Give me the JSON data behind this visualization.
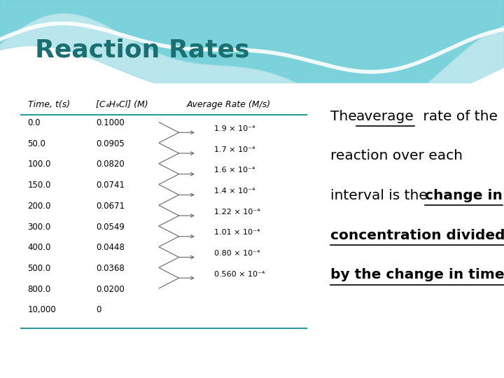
{
  "title": "Reaction Rates",
  "title_color": "#1a7070",
  "header_row": [
    "Time, t(s)",
    "[C₄H₉Cl] (M)",
    "Average Rate (M/s)"
  ],
  "time_col": [
    "0.0",
    "50.0",
    "100.0",
    "150.0",
    "200.0",
    "300.0",
    "400.0",
    "500.0",
    "800.0",
    "10,000"
  ],
  "conc_col": [
    "0.1000",
    "0.0905",
    "0.0820",
    "0.0741",
    "0.0671",
    "0.0549",
    "0.0448",
    "0.0368",
    "0.0200",
    "0"
  ],
  "rate_col": [
    "1.9 × 10⁻⁴",
    "1.7 × 10⁻⁴",
    "1.6 × 10⁻⁴",
    "1.4 × 10⁻⁴",
    "1.22 × 10⁻⁴",
    "1.01 × 10⁻⁴",
    "0.80 × 10⁻⁴",
    "0.560 × 10⁻⁴"
  ],
  "rate_row_indices": [
    1,
    2,
    3,
    4,
    5,
    6,
    7,
    8
  ],
  "wave_color1": "#6dcdd8",
  "wave_color2": "#a8e0e8",
  "line_color": "#2a9a9a"
}
